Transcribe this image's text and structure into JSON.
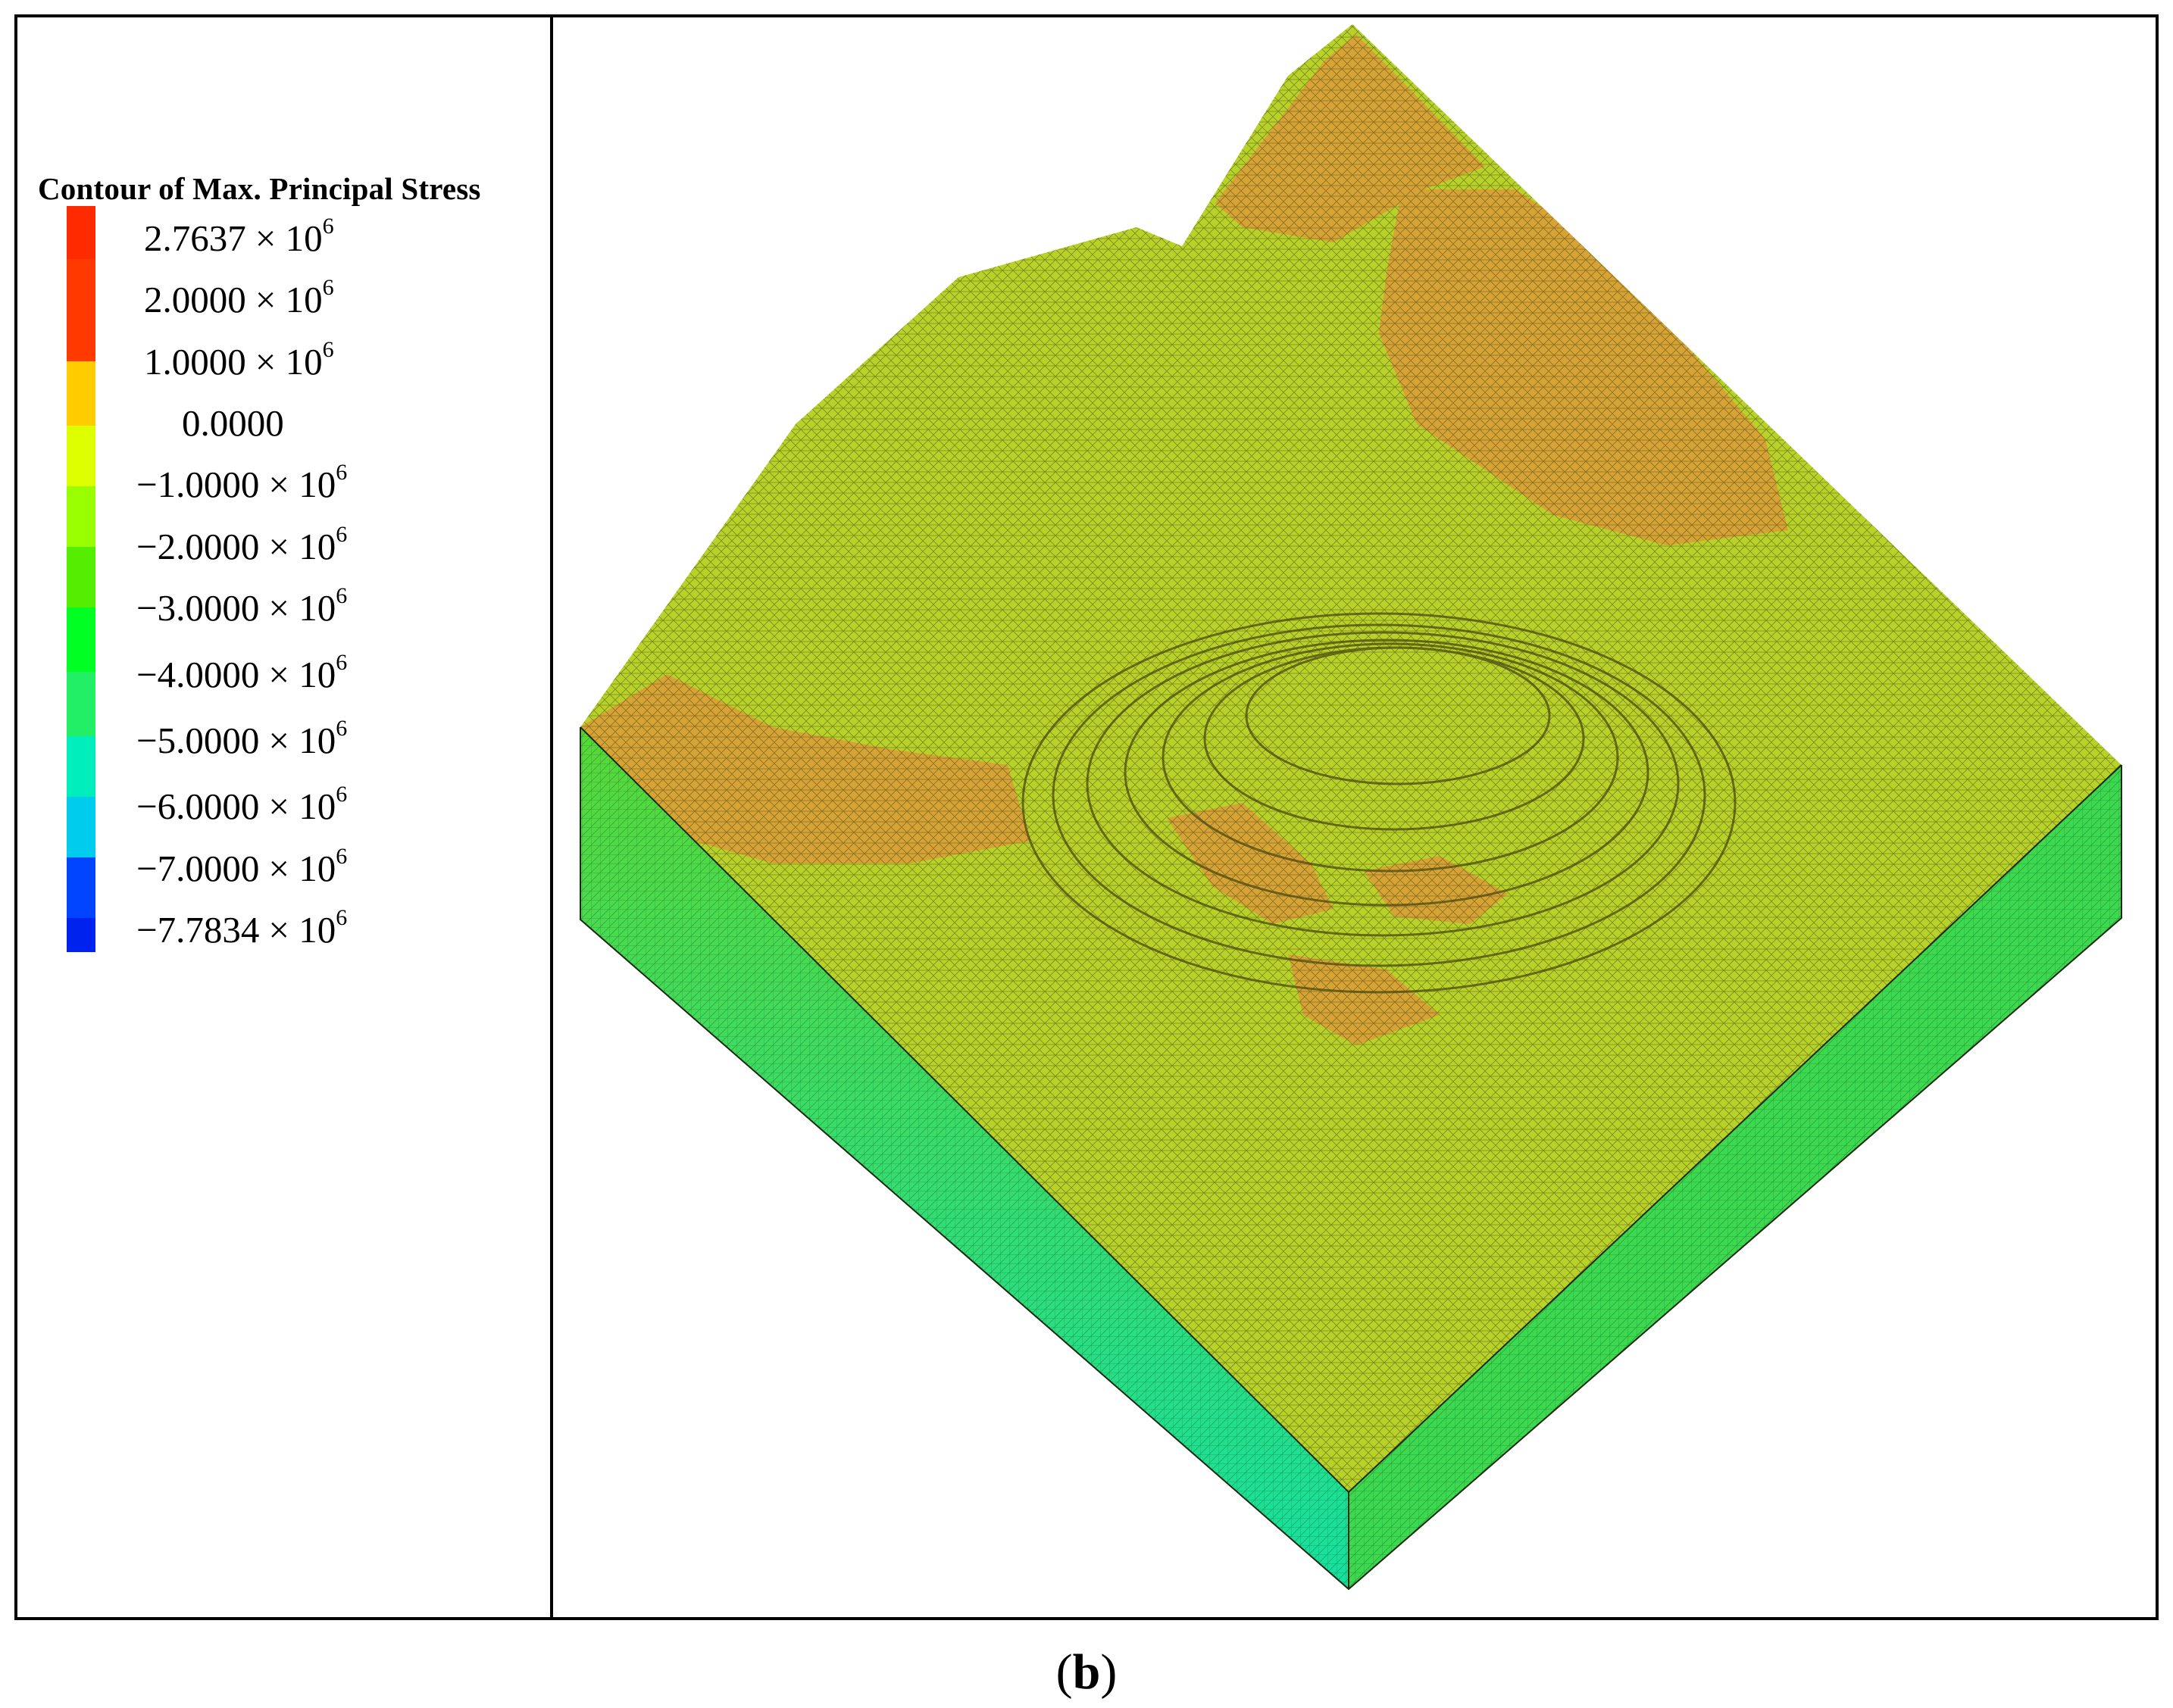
{
  "legend": {
    "title": "Contour of Max. Principal Stress",
    "ticks": [
      {
        "mantissa": "2.7637",
        "exponent": "6"
      },
      {
        "mantissa": "2.0000",
        "exponent": "6"
      },
      {
        "mantissa": "1.0000",
        "exponent": "6"
      },
      {
        "mantissa": "0.0000",
        "exponent": ""
      },
      {
        "mantissa": "−1.0000",
        "exponent": "6"
      },
      {
        "mantissa": "−2.0000",
        "exponent": "6"
      },
      {
        "mantissa": "−3.0000",
        "exponent": "6"
      },
      {
        "mantissa": "−4.0000",
        "exponent": "6"
      },
      {
        "mantissa": "−5.0000",
        "exponent": "6"
      },
      {
        "mantissa": "−6.0000",
        "exponent": "6"
      },
      {
        "mantissa": "−7.0000",
        "exponent": "6"
      },
      {
        "mantissa": "−7.7834",
        "exponent": "6"
      }
    ],
    "times": "× 10",
    "colors": [
      "#ff2a00",
      "#ff3a00",
      "#ffcc00",
      "#ddff00",
      "#99ff00",
      "#55ee00",
      "#00ff22",
      "#22ee66",
      "#00eebb",
      "#00ccee",
      "#0044ff",
      "#0022ee"
    ]
  },
  "model": {
    "surface_color": "#b9d22a",
    "tensile_zone_color": "#d7a335",
    "side_left_top_color": "#58d838",
    "side_left_bottom_color": "#16e0a0",
    "side_right_color": "#3cd850"
  },
  "caption": {
    "open": "(",
    "label": "b",
    "close": ")"
  }
}
